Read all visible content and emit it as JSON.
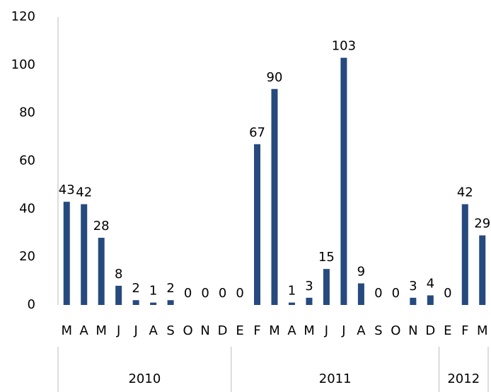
{
  "chart_data": {
    "type": "bar",
    "color": "#264a7e",
    "ylim": [
      0,
      120
    ],
    "yticks": [
      0,
      20,
      40,
      60,
      80,
      100,
      120
    ],
    "groups": [
      {
        "label": "2010",
        "categories": [
          "M",
          "A",
          "M",
          "J",
          "J",
          "A",
          "S",
          "O",
          "N",
          "D"
        ],
        "values": [
          43,
          42,
          28,
          8,
          2,
          1,
          2,
          0,
          0,
          0
        ]
      },
      {
        "label": "2011",
        "categories": [
          "E",
          "F",
          "M",
          "A",
          "M",
          "J",
          "J",
          "A",
          "S",
          "O",
          "N",
          "D"
        ],
        "values": [
          0,
          67,
          90,
          1,
          3,
          15,
          103,
          9,
          0,
          0,
          3,
          4
        ]
      },
      {
        "label": "2012",
        "categories": [
          "E",
          "F",
          "M"
        ],
        "values": [
          0,
          42,
          29
        ]
      }
    ]
  }
}
